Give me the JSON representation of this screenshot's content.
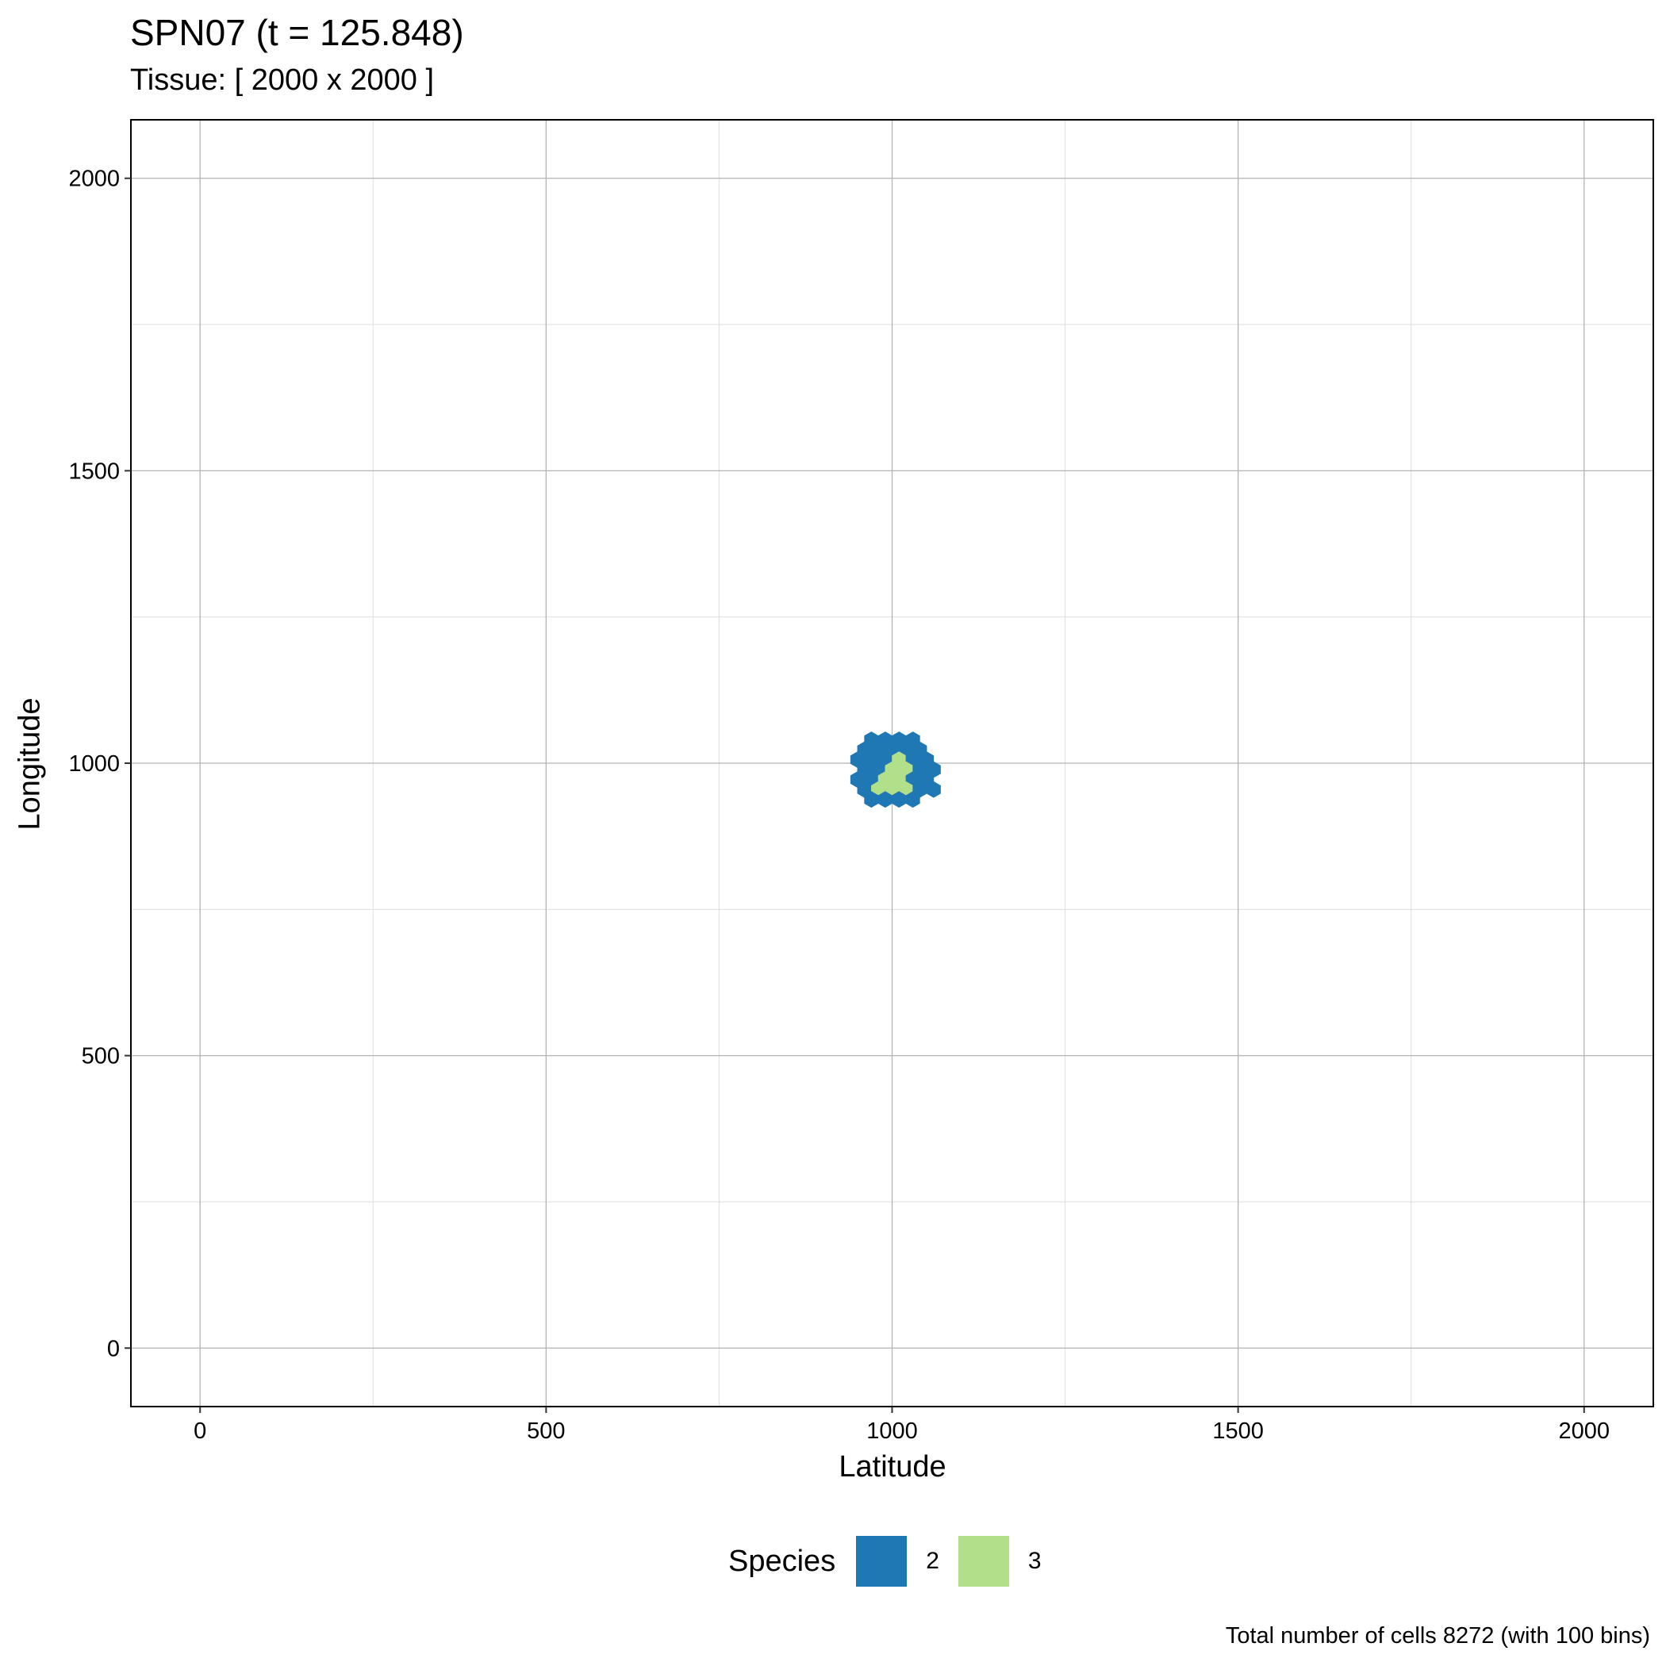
{
  "title": "SPN07 (t = 125.848)",
  "subtitle": "Tissue: [ 2000 x 2000 ]",
  "caption": "Total number of cells 8272 (with 100 bins)",
  "legend": {
    "title": "Species",
    "items": [
      {
        "label": "2",
        "color": "#1f78b4"
      },
      {
        "label": "3",
        "color": "#b2df8a"
      }
    ]
  },
  "chart_data": {
    "type": "heatmap",
    "subtype": "hexbin",
    "xlabel": "Latitude",
    "ylabel": "Longitude",
    "xlim": [
      -100,
      2100
    ],
    "ylim": [
      -100,
      2100
    ],
    "x_ticks": [
      0,
      500,
      1000,
      1500,
      2000
    ],
    "y_ticks": [
      0,
      500,
      1000,
      1500,
      2000
    ],
    "grid": true,
    "legend_position": "bottom",
    "cells": [
      {
        "x": 970,
        "y": 1040,
        "species": "2"
      },
      {
        "x": 990,
        "y": 1040,
        "species": "2"
      },
      {
        "x": 1010,
        "y": 1040,
        "species": "2"
      },
      {
        "x": 1030,
        "y": 1040,
        "species": "2"
      },
      {
        "x": 960,
        "y": 1023,
        "species": "2"
      },
      {
        "x": 980,
        "y": 1023,
        "species": "2"
      },
      {
        "x": 1000,
        "y": 1023,
        "species": "2"
      },
      {
        "x": 1020,
        "y": 1023,
        "species": "2"
      },
      {
        "x": 1040,
        "y": 1023,
        "species": "2"
      },
      {
        "x": 950,
        "y": 1006,
        "species": "2"
      },
      {
        "x": 970,
        "y": 1006,
        "species": "2"
      },
      {
        "x": 990,
        "y": 1006,
        "species": "2"
      },
      {
        "x": 1010,
        "y": 1006,
        "species": "3"
      },
      {
        "x": 1030,
        "y": 1006,
        "species": "2"
      },
      {
        "x": 1050,
        "y": 1006,
        "species": "2"
      },
      {
        "x": 960,
        "y": 989,
        "species": "2"
      },
      {
        "x": 980,
        "y": 989,
        "species": "2"
      },
      {
        "x": 1000,
        "y": 989,
        "species": "3"
      },
      {
        "x": 1020,
        "y": 989,
        "species": "3"
      },
      {
        "x": 1040,
        "y": 989,
        "species": "2"
      },
      {
        "x": 1060,
        "y": 989,
        "species": "2"
      },
      {
        "x": 950,
        "y": 972,
        "species": "2"
      },
      {
        "x": 970,
        "y": 972,
        "species": "2"
      },
      {
        "x": 990,
        "y": 972,
        "species": "3"
      },
      {
        "x": 1010,
        "y": 972,
        "species": "3"
      },
      {
        "x": 1030,
        "y": 972,
        "species": "2"
      },
      {
        "x": 1050,
        "y": 972,
        "species": "2"
      },
      {
        "x": 960,
        "y": 955,
        "species": "2"
      },
      {
        "x": 980,
        "y": 955,
        "species": "3"
      },
      {
        "x": 1000,
        "y": 955,
        "species": "3"
      },
      {
        "x": 1020,
        "y": 955,
        "species": "3"
      },
      {
        "x": 1040,
        "y": 955,
        "species": "2"
      },
      {
        "x": 1060,
        "y": 955,
        "species": "2"
      },
      {
        "x": 970,
        "y": 938,
        "species": "2"
      },
      {
        "x": 990,
        "y": 938,
        "species": "2"
      },
      {
        "x": 1010,
        "y": 938,
        "species": "2"
      },
      {
        "x": 1030,
        "y": 938,
        "species": "2"
      }
    ]
  }
}
